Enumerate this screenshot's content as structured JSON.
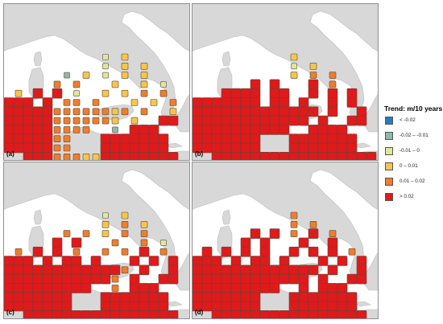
{
  "colors": {
    "sea": "#ffffff",
    "land": "#d8d8d8",
    "land_stroke": "#bdbdbd",
    "frame": "#909090",
    "cell_stroke": "#5a4a3a"
  },
  "legend": {
    "title": "Trend: m/10 years",
    "classes": [
      {
        "label": "< -0.02",
        "color": "#1f7fc4"
      },
      {
        "label": "-0.02 – -0.01",
        "color": "#8fb9a5"
      },
      {
        "label": "-0.01 – 0",
        "color": "#dfe89a"
      },
      {
        "label": "0 – 0.01",
        "color": "#f5c64c"
      },
      {
        "label": "0.01 – 0.02",
        "color": "#ef7d2c"
      },
      {
        "label": "> 0.02",
        "color": "#e0191b"
      }
    ]
  },
  "panels": [
    {
      "label": "(a)"
    },
    {
      "label": "(b)"
    },
    {
      "label": "(c)"
    },
    {
      "label": "(d)"
    }
  ],
  "grids": [
    [
      "..........2.3.....",
      "..........2.3.3...",
      "......1.3.2.3.3...",
      ".....4.4...3..3.2.",
      ".3.5.5.2..3.3.4.4.",
      "555.5.44.4...3.3.4",
      "5555544444434.4..3",
      "555554444443.3..55",
      "555554444..1.555..",
      "5555544...5555555.",
      "5555544...5555555.",
      "..5554443355555555",
      "...55555444444455."
    ],
    [
      "..........3.......",
      "..........2.3.....",
      "..........3.4.4...",
      "......5.5...5.4...",
      "...5555.55..5.5.5.",
      "5555555.55.5..5.5.",
      "5555555555555.5..5",
      "555555555555.5..55",
      "5555555555..5555..",
      "5555555...5555555.",
      "5555555...5555555.",
      "..55555555555555555",
      "...55555555555555."
    ],
    [
      "..........2.3.....",
      "..........3.4.3...",
      "......4.4.3.4.4...",
      ".....5.5...4..4.2.",
      ".4.5.5.4..4.4.5.4.",
      "555.5.55.5...5.5.5",
      "5555555555554.5..5",
      "555555555554.5..55",
      "555555555..4.555..",
      "5555555...5555555.",
      "5555555...5555555.",
      "..5555555555555555",
      "...55555555555555."
    ],
    [
      "..........4.......",
      "..........4.4.....",
      "......5.5.4.5.4...",
      ".....5.5...5..5...",
      ".5.5.5.5..5.5.5.4.",
      "555.5.55.5...5.5.5",
      "5555555555555.5..5",
      "555555555555.5..55",
      "555555555..5.555..",
      "5555555...5555555.",
      "5555555...5555555.",
      "..5555555555555555",
      "...55555555555555."
    ]
  ]
}
